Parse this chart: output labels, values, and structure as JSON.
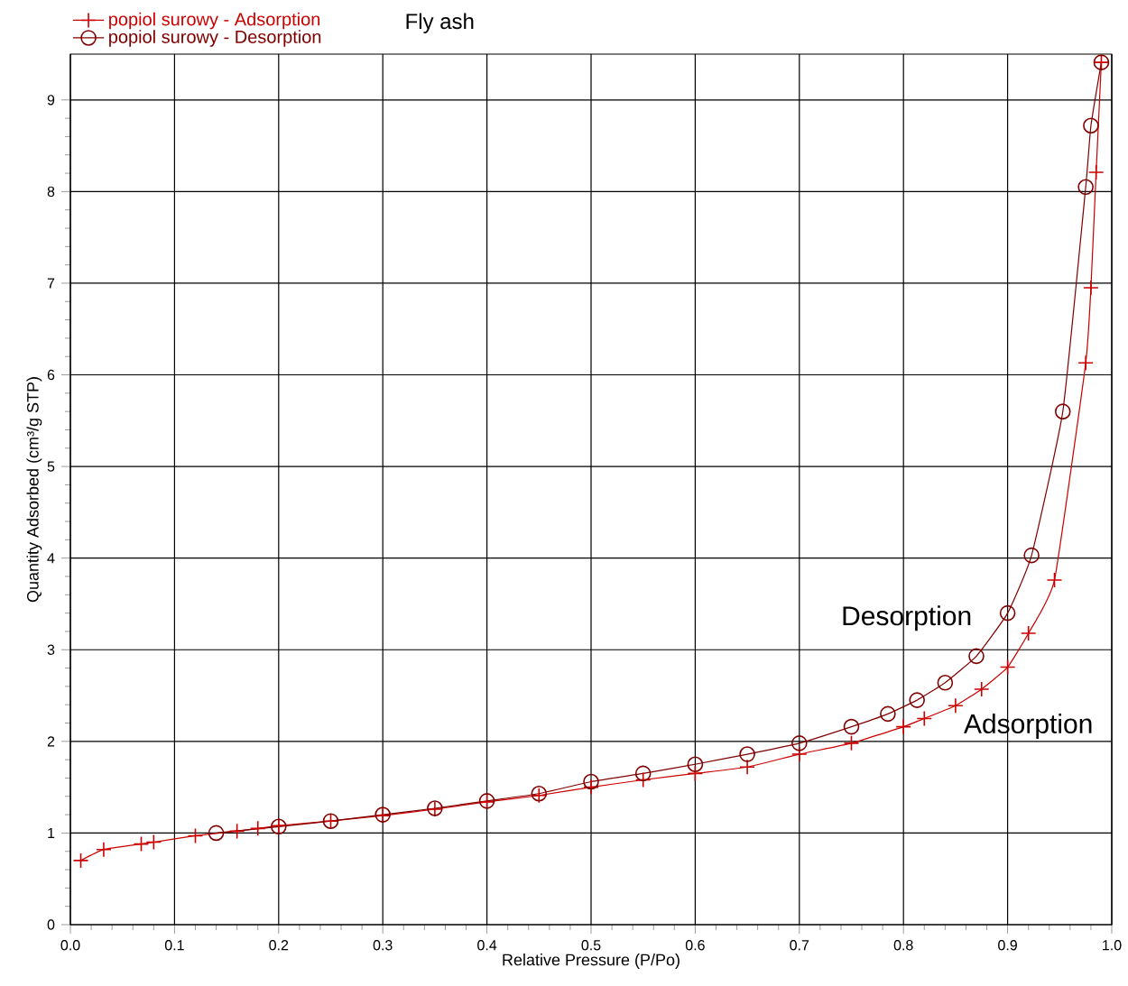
{
  "chart_data": {
    "type": "line",
    "title": "Fly ash",
    "xlabel": "Relative Pressure (P/Po)",
    "ylabel": "Quantity Adsorbed (cm³/g STP)",
    "xlim": [
      0,
      1
    ],
    "ylim": [
      0,
      9.5
    ],
    "xticks": [
      {
        "value": 0,
        "label": "0.0"
      },
      0.1,
      0.2,
      0.3,
      0.4,
      0.5,
      0.6,
      0.7,
      0.8,
      0.9,
      {
        "value": 1,
        "label": "1.0"
      }
    ],
    "yticks": [
      0,
      1,
      2,
      3,
      4,
      5,
      6,
      7,
      8,
      9
    ],
    "grid": true,
    "legend": "top left",
    "line_style": "solid",
    "annotations": [
      "Desorption",
      "Adsorption"
    ],
    "series": [
      {
        "name": "popiol surowy - Adsorption",
        "color": "#cc0000",
        "marker": "cross",
        "x": [
          0.01,
          0.032,
          0.068,
          0.08,
          0.12,
          0.16,
          0.18,
          0.2,
          0.25,
          0.3,
          0.35,
          0.4,
          0.45,
          0.5,
          0.55,
          0.6,
          0.65,
          0.7,
          0.75,
          0.8,
          0.82,
          0.85,
          0.875,
          0.9,
          0.92,
          0.945,
          0.975,
          0.98,
          0.985,
          0.99
        ],
        "values": [
          0.7,
          0.82,
          0.88,
          0.9,
          0.97,
          1.02,
          1.05,
          1.08,
          1.13,
          1.19,
          1.26,
          1.34,
          1.41,
          1.5,
          1.58,
          1.65,
          1.72,
          1.86,
          1.98,
          2.16,
          2.25,
          2.39,
          2.57,
          2.81,
          3.18,
          3.76,
          6.13,
          6.95,
          8.21,
          9.41
        ]
      },
      {
        "name": "popiol surowy - Desorption",
        "color": "#800000",
        "marker": "circle",
        "x": [
          0.99,
          0.98,
          0.975,
          0.953,
          0.923,
          0.9,
          0.87,
          0.84,
          0.813,
          0.785,
          0.75,
          0.7,
          0.65,
          0.6,
          0.55,
          0.5,
          0.45,
          0.4,
          0.35,
          0.3,
          0.25,
          0.2,
          0.14
        ],
        "values": [
          9.41,
          8.72,
          8.05,
          5.6,
          4.03,
          3.4,
          2.93,
          2.64,
          2.45,
          2.3,
          2.16,
          1.98,
          1.86,
          1.75,
          1.65,
          1.56,
          1.43,
          1.35,
          1.27,
          1.2,
          1.13,
          1.07,
          1.0
        ]
      }
    ]
  }
}
